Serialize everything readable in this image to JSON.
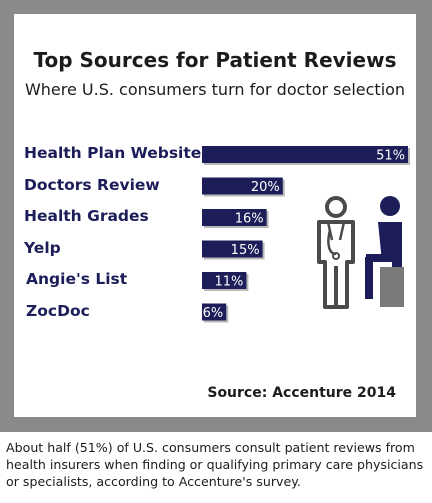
{
  "chart_data": {
    "type": "bar",
    "orientation": "horizontal",
    "title": "Top Sources for Patient Reviews",
    "subtitle": "Where U.S. consumers turn for doctor selection",
    "categories": [
      "Health Plan Website",
      "Doctors Review",
      "Health Grades",
      "Yelp",
      "Angie's List",
      "ZocDoc"
    ],
    "values": [
      51,
      20,
      16,
      15,
      11,
      6
    ],
    "value_labels": [
      "51%",
      "20%",
      "16%",
      "15%",
      "11%",
      "6%"
    ],
    "unit": "%",
    "xlim": [
      0,
      51
    ],
    "grid": false,
    "legend": "none",
    "bar_color": "#1d1d5a",
    "label_color": "#1d1d5a",
    "source": "Source: Accenture 2014"
  },
  "caption": "About half (51%) of U.S. consumers consult patient reviews from health insurers when finding or qualifying primary care physicians or specialists, according to Accenture's survey.",
  "illustration": {
    "icons": [
      "doctor-icon",
      "seated-patient-icon"
    ],
    "colors": {
      "outline": "#4a4a4a",
      "fill": "#1d1d5a",
      "chair": "#7a7a7a"
    }
  }
}
